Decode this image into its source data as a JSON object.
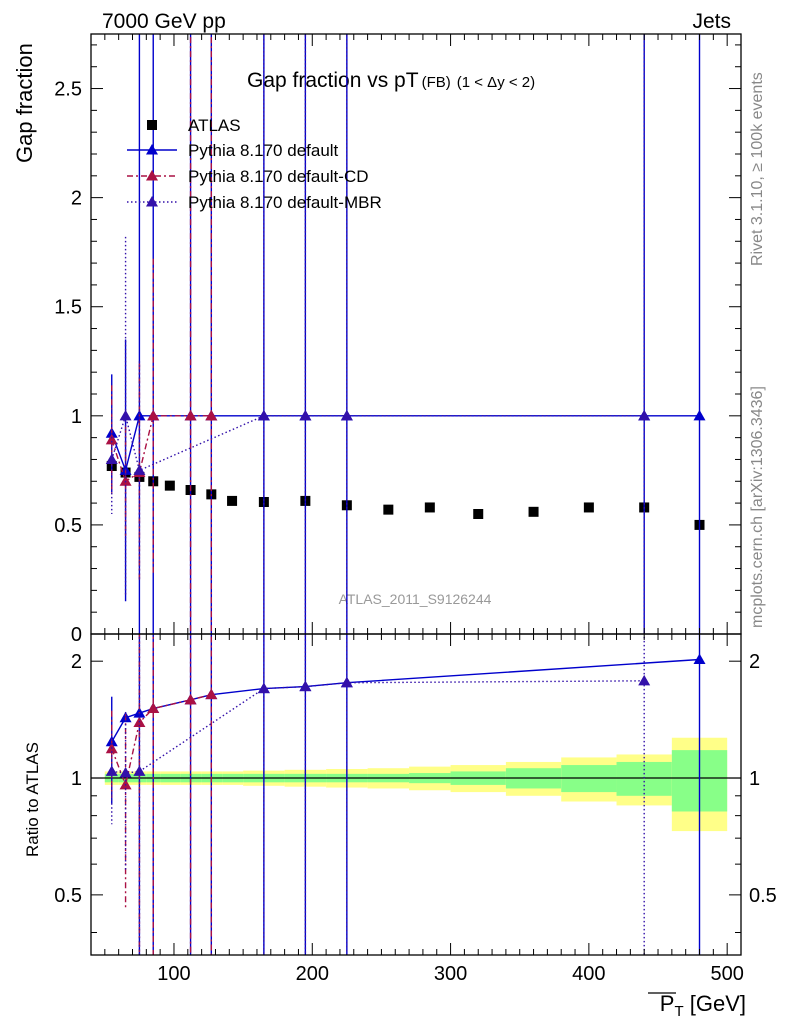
{
  "header": {
    "left": "7000 GeV pp",
    "right": "Jets"
  },
  "side_labels": {
    "rivet": "Rivet 3.1.10, ≥ 100k events",
    "mcplots": "mcplots.cern.ch [arXiv:1306.3436]"
  },
  "colors": {
    "data": "#000000",
    "default": "#0000cc",
    "cd": "#aa1144",
    "mbr": "#3311aa",
    "band_inner": "#88ff88",
    "band_outer": "#ffff88"
  },
  "chart_data": [
    {
      "type": "scatter",
      "title_main": "Gap fraction vs pT",
      "title_sub": "(FB)",
      "title_range": "(1 < Δy < 2)",
      "ylabel": "Gap fraction",
      "xlim": [
        40,
        510
      ],
      "ylim": [
        0,
        2.75
      ],
      "yticks": [
        "0",
        "0.5",
        "1",
        "1.5",
        "2",
        "2.5"
      ],
      "watermark": "ATLAS_2011_S9126244",
      "series": [
        {
          "name": "ATLAS",
          "style": "data",
          "x": [
            55,
            65,
            75,
            85,
            97,
            112,
            127,
            142,
            165,
            195,
            225,
            255,
            285,
            320,
            360,
            400,
            440,
            480
          ],
          "y": [
            0.77,
            0.74,
            0.72,
            0.7,
            0.68,
            0.66,
            0.64,
            0.61,
            0.605,
            0.61,
            0.59,
            0.57,
            0.58,
            0.55,
            0.56,
            0.58,
            0.58,
            0.5
          ]
        },
        {
          "name": "Pythia 8.170 default",
          "style": "default",
          "x": [
            55,
            65,
            75,
            85,
            112,
            127,
            165,
            195,
            225,
            440,
            480
          ],
          "y": [
            0.92,
            0.75,
            1.0,
            1.0,
            1.0,
            1.0,
            1.0,
            1.0,
            1.0,
            1.0,
            1.0
          ],
          "err": [
            0.27,
            0.6,
            1.8,
            1.8,
            1.8,
            1.8,
            1.8,
            1.8,
            1.8,
            1.8,
            1.8
          ]
        },
        {
          "name": "Pythia 8.170 default-CD",
          "style": "cd",
          "x": [
            55,
            65,
            75,
            85,
            112,
            127
          ],
          "y": [
            0.89,
            0.7,
            0.74,
            1.0,
            1.0,
            1.0
          ],
          "err": [
            0.25,
            0.25,
            0.5,
            0.72,
            1.8,
            1.8
          ]
        },
        {
          "name": "Pythia 8.170 default-MBR",
          "style": "mbr",
          "x": [
            55,
            65,
            75,
            165,
            195,
            225,
            440
          ],
          "y": [
            0.8,
            1.0,
            0.75,
            1.0,
            1.0,
            1.0,
            1.0
          ],
          "err": [
            0.25,
            0.82,
            0.5,
            1.8,
            1.8,
            1.8,
            1.8
          ]
        }
      ]
    },
    {
      "type": "scatter",
      "ylabel": "Ratio to ATLAS",
      "xlabel": "P_T [GeV]",
      "xlim": [
        40,
        510
      ],
      "ylim": [
        0.35,
        2.35
      ],
      "yticks": [
        "0.5",
        "1",
        "2"
      ],
      "xticks": [
        "100",
        "200",
        "300",
        "400",
        "500"
      ],
      "band": {
        "edges": [
          50,
          60,
          70,
          80,
          90,
          105,
          120,
          135,
          150,
          180,
          210,
          240,
          270,
          300,
          340,
          380,
          420,
          460,
          500
        ],
        "inner": [
          0.025,
          0.025,
          0.025,
          0.025,
          0.025,
          0.025,
          0.025,
          0.025,
          0.025,
          0.025,
          0.025,
          0.025,
          0.03,
          0.04,
          0.06,
          0.08,
          0.1,
          0.18
        ],
        "outer": [
          0.04,
          0.04,
          0.04,
          0.04,
          0.04,
          0.04,
          0.04,
          0.04,
          0.045,
          0.05,
          0.055,
          0.06,
          0.07,
          0.08,
          0.1,
          0.13,
          0.15,
          0.27
        ]
      },
      "series": [
        {
          "name": "Pythia 8.170 default",
          "style": "default",
          "x": [
            55,
            65,
            75,
            85,
            112,
            127,
            165,
            195,
            225,
            480
          ],
          "y": [
            1.24,
            1.43,
            1.47,
            1.51,
            1.59,
            1.64,
            1.7,
            1.72,
            1.76,
            2.02
          ],
          "err": [
            0.38,
            0.0,
            2.5,
            2.5,
            2.5,
            2.5,
            2.5,
            2.5,
            2.5,
            2.5
          ]
        },
        {
          "name": "Pythia 8.170 default-CD",
          "style": "cd",
          "x": [
            55,
            65,
            75,
            85,
            112,
            127
          ],
          "y": [
            1.19,
            0.96,
            1.39,
            1.51,
            1.59,
            1.64
          ],
          "err": [
            0.3,
            0.5,
            2.5,
            2.5,
            2.5,
            2.5
          ]
        },
        {
          "name": "Pythia 8.170 default-MBR",
          "style": "mbr",
          "x": [
            55,
            65,
            75,
            165,
            195,
            225,
            440
          ],
          "y": [
            1.04,
            1.03,
            1.04,
            1.7,
            1.72,
            1.76,
            1.78
          ],
          "err": [
            0.28,
            0.45,
            2.5,
            2.5,
            2.5,
            2.5,
            2.5
          ]
        }
      ]
    }
  ]
}
